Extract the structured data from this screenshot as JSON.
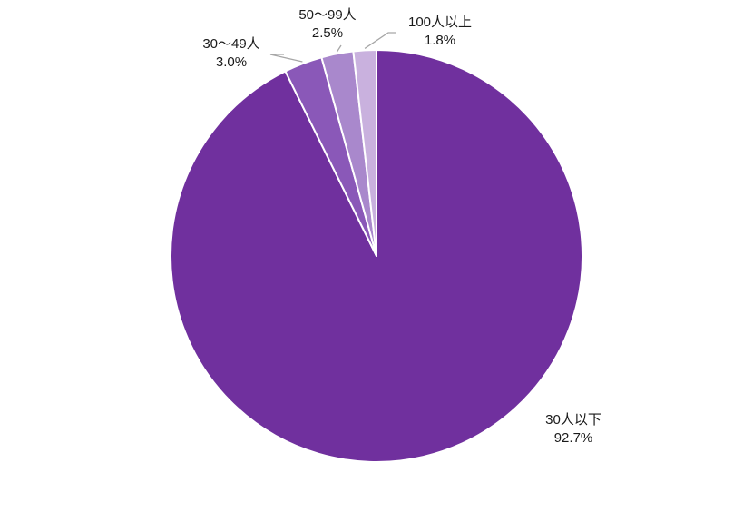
{
  "chart_data": {
    "type": "pie",
    "title": "",
    "slices": [
      {
        "label": "30人以下",
        "value": 92.7,
        "value_label": "92.7%",
        "color": "#70309e"
      },
      {
        "label": "30～49人",
        "value": 3.0,
        "value_label": "3.0%",
        "color": "#8a58b8"
      },
      {
        "label": "50～99人",
        "value": 2.5,
        "value_label": "2.5%",
        "color": "#a988cc"
      },
      {
        "label": "100人以上",
        "value": 1.8,
        "value_label": "1.8%",
        "color": "#c9b1de"
      }
    ],
    "start_angle": "12 o'clock",
    "direction": "clockwise",
    "legend": "none",
    "slice_border_color": "#ffffff",
    "leader_line_color": "#a6a6a6"
  }
}
